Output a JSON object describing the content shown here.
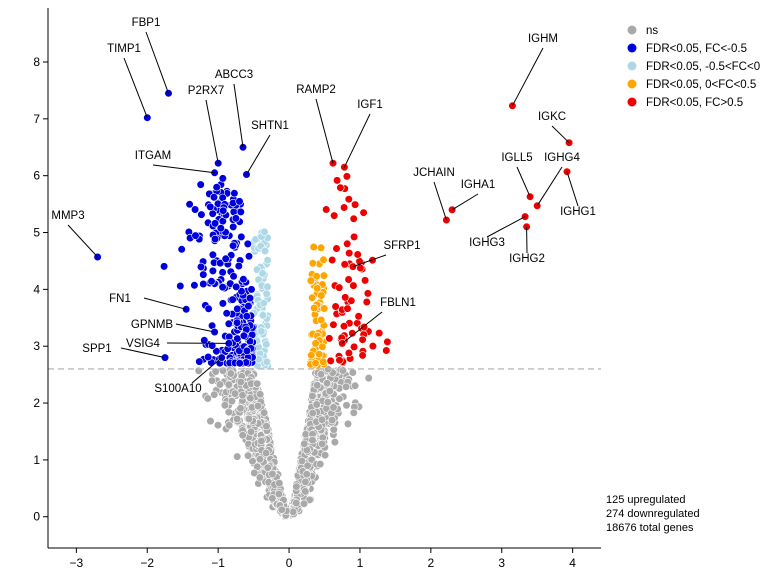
{
  "chart_data": {
    "type": "scatter",
    "title": "",
    "xlabel": "",
    "ylabel": "",
    "xlim": [
      -3.4,
      4.4
    ],
    "ylim": [
      -0.55,
      8.95
    ],
    "x_ticks": [
      -3,
      -2,
      -1,
      0,
      1,
      2,
      3,
      4
    ],
    "x_tick_labels": [
      "−3",
      "−2",
      "−1",
      "0",
      "1",
      "2",
      "3",
      "4"
    ],
    "y_ticks": [
      0,
      1,
      2,
      3,
      4,
      5,
      6,
      7,
      8
    ],
    "y_tick_labels": [
      "0",
      "1",
      "2",
      "3",
      "4",
      "5",
      "6",
      "7",
      "8"
    ],
    "grid": false,
    "threshold": {
      "y": 2.6,
      "style": "dashed",
      "color": "#bbbbbb"
    },
    "legend": {
      "position": "top-right"
    },
    "series": [
      {
        "name": "ns",
        "color": "#a9a9a9"
      },
      {
        "name": "FDR<0.05, FC<-0.5",
        "color": "#0000dd"
      },
      {
        "name": "FDR<0.05, -0.5<FC<0",
        "color": "#add8e6"
      },
      {
        "name": "FDR<0.05, 0<FC<0.5",
        "color": "#ffa500"
      },
      {
        "name": "FDR<0.05, FC>0.5",
        "color": "#ee0000"
      }
    ],
    "labeled_genes": [
      {
        "gene": "FBP1",
        "x": -1.7,
        "y": 7.45,
        "group": 1
      },
      {
        "gene": "TIMP1",
        "x": -2.0,
        "y": 7.02,
        "group": 1
      },
      {
        "gene": "P2RX7",
        "x": -1.0,
        "y": 6.22,
        "group": 1
      },
      {
        "gene": "ABCC3",
        "x": -0.65,
        "y": 6.5,
        "group": 1
      },
      {
        "gene": "SHTN1",
        "x": -0.6,
        "y": 6.02,
        "group": 1
      },
      {
        "gene": "ITGAM",
        "x": -1.05,
        "y": 6.05,
        "group": 1
      },
      {
        "gene": "MMP3",
        "x": -2.7,
        "y": 4.57,
        "group": 1
      },
      {
        "gene": "FN1",
        "x": -1.45,
        "y": 3.65,
        "group": 1
      },
      {
        "gene": "GPNMB",
        "x": -1.05,
        "y": 3.25,
        "group": 1
      },
      {
        "gene": "SPP1",
        "x": -1.75,
        "y": 2.8,
        "group": 1
      },
      {
        "gene": "VSIG4",
        "x": -0.85,
        "y": 3.05,
        "group": 1
      },
      {
        "gene": "S100A10",
        "x": -0.95,
        "y": 2.8,
        "group": 1
      },
      {
        "gene": "RAMP2",
        "x": 0.62,
        "y": 6.22,
        "group": 4
      },
      {
        "gene": "IGF1",
        "x": 0.78,
        "y": 6.15,
        "group": 4
      },
      {
        "gene": "SFRP1",
        "x": 0.9,
        "y": 4.4,
        "group": 4
      },
      {
        "gene": "FBLN1",
        "x": 0.75,
        "y": 3.05,
        "group": 4
      },
      {
        "gene": "IGHM",
        "x": 3.15,
        "y": 7.23,
        "group": 4
      },
      {
        "gene": "IGKC",
        "x": 3.95,
        "y": 6.58,
        "group": 4
      },
      {
        "gene": "JCHAIN",
        "x": 2.22,
        "y": 5.22,
        "group": 4
      },
      {
        "gene": "IGHA1",
        "x": 2.3,
        "y": 5.4,
        "group": 4
      },
      {
        "gene": "IGLL5",
        "x": 3.4,
        "y": 5.63,
        "group": 4
      },
      {
        "gene": "IGHG4",
        "x": 3.5,
        "y": 5.47,
        "group": 4
      },
      {
        "gene": "IGHG1",
        "x": 3.92,
        "y": 6.07,
        "group": 4
      },
      {
        "gene": "IGHG3",
        "x": 3.33,
        "y": 5.28,
        "group": 4
      },
      {
        "gene": "IGHG2",
        "x": 3.35,
        "y": 5.1,
        "group": 4
      }
    ],
    "annotation_lines": [
      "125 upregulated",
      "274 downregulated",
      "18676 total genes"
    ]
  }
}
